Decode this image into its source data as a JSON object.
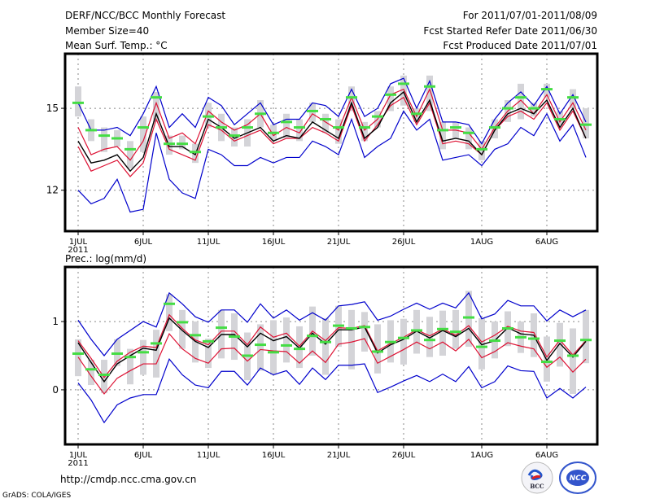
{
  "header": {
    "title": "DERF/NCC/BCC Monthly Forecast",
    "member_size": "Member Size=40",
    "variable": "Mean Surf. Temp.: °C",
    "period": "For 2011/07/01-2011/08/09",
    "start_date": "Fcst Started Refer Date 2011/06/30",
    "produced_date": "Fcst Produced Date 2011/07/01"
  },
  "footer": {
    "url": "http://cmdp.ncc.cma.gov.cn",
    "credit": "GrADS: COLA/IGES",
    "logos": [
      "BCC",
      "NCC"
    ]
  },
  "colors": {
    "obs": "#44dd44",
    "mean": "#000000",
    "spread": "#dd1133",
    "extreme": "#0000cc",
    "box": "#d4d4d8",
    "grid": "#888888"
  },
  "chart_data": [
    {
      "type": "line",
      "title": "Mean Surf. Temp.: °C",
      "xlabel": "",
      "ylabel": "",
      "x_tick_labels": [
        "1JUL",
        "6JUL",
        "11JUL",
        "16JUL",
        "21JUL",
        "26JUL",
        "1AUG",
        "6AUG"
      ],
      "x_tick_days": [
        1,
        6,
        11,
        16,
        21,
        26,
        32,
        37
      ],
      "x_sub_label": "2011",
      "yticks": [
        12,
        15
      ],
      "ylim": [
        10.5,
        17.0
      ],
      "grid": true,
      "x": [
        1,
        2,
        3,
        4,
        5,
        6,
        7,
        8,
        9,
        10,
        11,
        12,
        13,
        14,
        15,
        16,
        17,
        18,
        19,
        20,
        21,
        22,
        23,
        24,
        25,
        26,
        27,
        28,
        29,
        30,
        31,
        32,
        33,
        34,
        35,
        36,
        37,
        38,
        39,
        40
      ],
      "series": [
        {
          "name": "observed",
          "style": "green-dash",
          "values": [
            15.2,
            14.2,
            14.0,
            13.9,
            13.5,
            14.3,
            15.4,
            13.7,
            13.7,
            13.4,
            14.7,
            14.3,
            14.0,
            14.3,
            14.8,
            14.1,
            14.5,
            14.3,
            14.9,
            14.6,
            14.3,
            15.4,
            14.3,
            14.7,
            15.5,
            15.9,
            14.8,
            15.8,
            14.2,
            14.3,
            14.1,
            13.5,
            14.3,
            15.0,
            15.4,
            15.0,
            15.7,
            14.6,
            15.4,
            14.4
          ]
        },
        {
          "name": "ensemble-mean",
          "values": [
            13.8,
            13.0,
            13.1,
            13.3,
            12.7,
            13.2,
            14.8,
            13.6,
            13.6,
            13.3,
            14.6,
            14.3,
            13.9,
            14.1,
            14.3,
            13.8,
            14.0,
            13.9,
            14.5,
            14.2,
            13.9,
            15.2,
            13.9,
            14.3,
            15.2,
            15.6,
            14.5,
            15.3,
            13.8,
            13.9,
            13.8,
            13.3,
            14.2,
            14.8,
            15.0,
            14.8,
            15.3,
            14.3,
            15.0,
            13.9
          ]
        },
        {
          "name": "spread-upper",
          "values": [
            14.3,
            13.3,
            13.5,
            13.6,
            13.1,
            13.8,
            15.2,
            13.9,
            14.1,
            13.7,
            14.9,
            14.5,
            14.2,
            14.4,
            14.8,
            14.0,
            14.3,
            14.1,
            14.8,
            14.5,
            14.2,
            15.4,
            14.2,
            14.6,
            15.5,
            15.7,
            14.7,
            15.7,
            14.2,
            14.2,
            14.1,
            13.5,
            14.3,
            14.9,
            15.3,
            14.8,
            15.5,
            14.5,
            15.2,
            14.2
          ]
        },
        {
          "name": "spread-lower",
          "values": [
            13.6,
            12.7,
            12.9,
            13.1,
            12.5,
            13.0,
            14.6,
            13.5,
            13.3,
            13.1,
            14.4,
            14.2,
            13.8,
            14.0,
            14.2,
            13.7,
            13.9,
            13.9,
            14.3,
            14.1,
            13.8,
            15.1,
            13.8,
            14.4,
            15.1,
            15.4,
            14.4,
            15.2,
            13.7,
            13.8,
            13.7,
            13.3,
            14.2,
            14.7,
            14.9,
            14.6,
            15.2,
            14.2,
            14.9,
            13.9
          ]
        },
        {
          "name": "ensemble-max",
          "values": [
            15.2,
            14.2,
            14.2,
            14.3,
            14.0,
            14.8,
            15.8,
            14.3,
            14.8,
            14.3,
            15.4,
            15.1,
            14.4,
            14.8,
            15.2,
            14.4,
            14.6,
            14.6,
            15.2,
            15.1,
            14.7,
            15.7,
            14.7,
            15.0,
            15.9,
            16.1,
            15.0,
            16.0,
            14.5,
            14.5,
            14.4,
            13.7,
            14.6,
            15.2,
            15.6,
            15.1,
            15.8,
            14.8,
            15.5,
            14.5
          ]
        },
        {
          "name": "ensemble-min",
          "values": [
            12.0,
            11.5,
            11.7,
            12.4,
            11.2,
            11.3,
            14.1,
            12.4,
            11.9,
            11.7,
            13.5,
            13.3,
            12.9,
            12.9,
            13.2,
            13.0,
            13.2,
            13.2,
            13.8,
            13.6,
            13.3,
            14.6,
            13.2,
            13.6,
            13.9,
            14.9,
            14.2,
            14.6,
            13.1,
            13.2,
            13.3,
            12.9,
            13.5,
            13.7,
            14.3,
            14.0,
            14.8,
            13.8,
            14.4,
            13.2
          ]
        },
        {
          "name": "box-upper",
          "values": [
            15.8,
            14.6,
            14.3,
            14.2,
            13.8,
            14.7,
            15.6,
            14.0,
            14.0,
            13.7,
            15.2,
            14.8,
            14.3,
            14.6,
            15.3,
            14.4,
            14.8,
            14.6,
            15.2,
            14.8,
            14.6,
            15.8,
            14.5,
            14.9,
            15.8,
            16.2,
            15.0,
            16.2,
            14.5,
            14.5,
            14.3,
            13.8,
            14.6,
            15.3,
            15.9,
            15.2,
            15.9,
            14.9,
            15.7,
            15.0
          ]
        },
        {
          "name": "box-lower",
          "values": [
            14.7,
            13.8,
            13.4,
            13.6,
            12.8,
            13.4,
            14.5,
            13.3,
            13.5,
            13.0,
            14.3,
            13.8,
            13.6,
            13.6,
            14.3,
            13.8,
            13.9,
            13.8,
            14.5,
            14.1,
            13.7,
            14.9,
            13.8,
            14.3,
            14.9,
            15.1,
            14.5,
            14.9,
            13.5,
            13.9,
            13.5,
            13.1,
            13.9,
            14.5,
            14.6,
            14.7,
            15.4,
            14.4,
            15.0,
            13.9
          ]
        }
      ]
    },
    {
      "type": "line",
      "title": "Prec.: log(mm/d)",
      "xlabel": "",
      "ylabel": "",
      "x_tick_labels": [
        "1JUL",
        "6JUL",
        "11JUL",
        "16JUL",
        "21JUL",
        "26JUL",
        "1AUG",
        "6AUG"
      ],
      "x_tick_days": [
        1,
        6,
        11,
        16,
        21,
        26,
        32,
        37
      ],
      "x_sub_label": "2011",
      "yticks": [
        0,
        1
      ],
      "ylim": [
        -0.8,
        1.8
      ],
      "grid": true,
      "x": [
        1,
        2,
        3,
        4,
        5,
        6,
        7,
        8,
        9,
        10,
        11,
        12,
        13,
        14,
        15,
        16,
        17,
        18,
        19,
        20,
        21,
        22,
        23,
        24,
        25,
        26,
        27,
        28,
        29,
        30,
        31,
        32,
        33,
        34,
        35,
        36,
        37,
        38,
        39,
        40
      ],
      "series": [
        {
          "name": "observed",
          "style": "green-dash",
          "values": [
            0.53,
            0.3,
            0.22,
            0.53,
            0.48,
            0.55,
            0.68,
            1.26,
            0.99,
            0.8,
            0.71,
            0.91,
            0.78,
            0.5,
            0.66,
            0.55,
            0.65,
            0.6,
            0.79,
            0.7,
            0.94,
            0.9,
            0.92,
            0.56,
            0.7,
            0.76,
            0.87,
            0.73,
            0.89,
            0.85,
            1.06,
            0.63,
            0.72,
            0.9,
            0.77,
            0.75,
            0.41,
            0.72,
            0.5,
            0.73
          ]
        },
        {
          "name": "ensemble-mean",
          "values": [
            0.69,
            0.4,
            0.12,
            0.38,
            0.5,
            0.61,
            0.58,
            1.05,
            0.87,
            0.71,
            0.62,
            0.81,
            0.81,
            0.63,
            0.83,
            0.72,
            0.78,
            0.61,
            0.83,
            0.67,
            0.88,
            0.88,
            0.92,
            0.54,
            0.66,
            0.74,
            0.86,
            0.76,
            0.87,
            0.78,
            0.9,
            0.66,
            0.72,
            0.91,
            0.82,
            0.8,
            0.43,
            0.68,
            0.48,
            0.71
          ]
        },
        {
          "name": "spread-upper",
          "values": [
            0.72,
            0.46,
            0.18,
            0.42,
            0.55,
            0.64,
            0.62,
            1.1,
            0.9,
            0.73,
            0.66,
            0.86,
            0.86,
            0.66,
            0.92,
            0.77,
            0.83,
            0.64,
            0.86,
            0.72,
            0.91,
            0.9,
            0.94,
            0.57,
            0.68,
            0.77,
            0.88,
            0.79,
            0.89,
            0.8,
            0.94,
            0.7,
            0.8,
            0.93,
            0.86,
            0.84,
            0.48,
            0.73,
            0.51,
            0.72
          ]
        },
        {
          "name": "spread-lower",
          "values": [
            0.48,
            0.2,
            -0.06,
            0.17,
            0.28,
            0.38,
            0.38,
            0.82,
            0.6,
            0.46,
            0.39,
            0.6,
            0.61,
            0.42,
            0.59,
            0.57,
            0.56,
            0.39,
            0.57,
            0.4,
            0.67,
            0.7,
            0.75,
            0.39,
            0.49,
            0.59,
            0.7,
            0.6,
            0.7,
            0.57,
            0.74,
            0.47,
            0.56,
            0.69,
            0.64,
            0.6,
            0.33,
            0.48,
            0.26,
            0.45
          ]
        },
        {
          "name": "ensemble-max",
          "values": [
            1.02,
            0.74,
            0.5,
            0.74,
            0.87,
            1.0,
            0.92,
            1.42,
            1.26,
            1.07,
            0.99,
            1.17,
            1.17,
            0.99,
            1.26,
            1.05,
            1.17,
            1.02,
            1.13,
            1.02,
            1.23,
            1.25,
            1.29,
            1.02,
            1.08,
            1.18,
            1.27,
            1.18,
            1.27,
            1.2,
            1.42,
            1.04,
            1.11,
            1.31,
            1.23,
            1.23,
            1.01,
            1.17,
            1.07,
            1.17
          ]
        },
        {
          "name": "ensemble-min",
          "values": [
            0.1,
            -0.15,
            -0.48,
            -0.22,
            -0.12,
            -0.07,
            -0.07,
            0.45,
            0.22,
            0.07,
            0.03,
            0.27,
            0.27,
            0.07,
            0.32,
            0.22,
            0.28,
            0.08,
            0.32,
            0.15,
            0.36,
            0.36,
            0.38,
            -0.04,
            0.04,
            0.13,
            0.21,
            0.12,
            0.23,
            0.12,
            0.34,
            0.03,
            0.12,
            0.35,
            0.28,
            0.27,
            -0.12,
            0.02,
            -0.12,
            0.04
          ]
        },
        {
          "name": "box-upper",
          "values": [
            0.74,
            0.44,
            0.44,
            0.74,
            0.6,
            0.73,
            0.88,
            1.4,
            1.17,
            1.0,
            0.75,
            1.17,
            1.12,
            0.84,
            0.96,
            1.02,
            1.06,
            0.93,
            1.22,
            1.05,
            1.23,
            1.17,
            1.14,
            0.96,
            1.02,
            1.04,
            1.17,
            1.07,
            1.16,
            1.17,
            1.45,
            1.05,
            1.0,
            1.15,
            1.0,
            1.12,
            0.78,
            0.98,
            0.9,
            1.17
          ]
        },
        {
          "name": "box-lower",
          "values": [
            0.2,
            0.07,
            -0.05,
            0.35,
            0.08,
            0.22,
            0.18,
            0.86,
            0.6,
            0.4,
            0.32,
            0.46,
            0.44,
            0.14,
            0.28,
            0.22,
            0.4,
            0.32,
            0.5,
            0.22,
            0.63,
            0.3,
            0.56,
            0.24,
            0.4,
            0.37,
            0.53,
            0.48,
            0.5,
            0.6,
            0.63,
            0.3,
            0.46,
            0.64,
            0.54,
            0.48,
            0.12,
            0.34,
            -0.06,
            0.39
          ]
        }
      ]
    }
  ]
}
